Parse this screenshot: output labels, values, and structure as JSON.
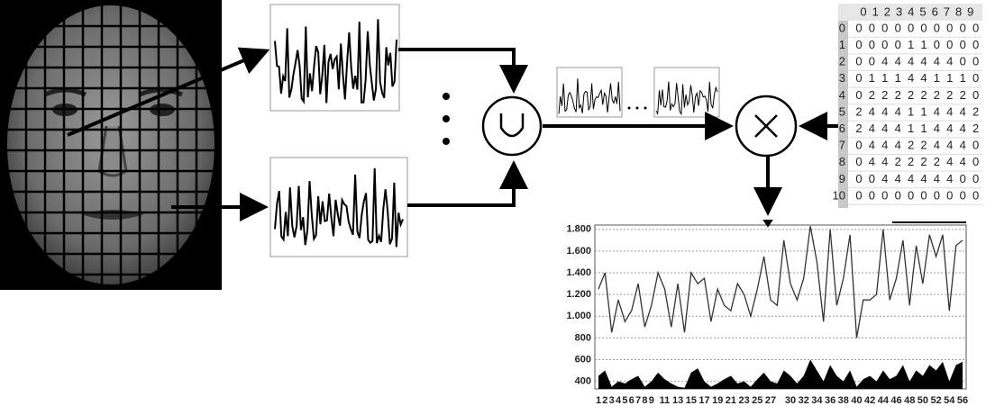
{
  "weight_matrix": {
    "columns": [
      "0",
      "1",
      "2",
      "3",
      "4",
      "5",
      "6",
      "7",
      "8",
      "9"
    ],
    "rows": [
      {
        "label": "0",
        "values": [
          0,
          0,
          0,
          0,
          0,
          0,
          0,
          0,
          0,
          0
        ]
      },
      {
        "label": "1",
        "values": [
          0,
          0,
          0,
          0,
          1,
          1,
          0,
          0,
          0,
          0
        ]
      },
      {
        "label": "2",
        "values": [
          0,
          0,
          4,
          4,
          4,
          4,
          4,
          4,
          0,
          0
        ]
      },
      {
        "label": "3",
        "values": [
          0,
          1,
          1,
          1,
          4,
          4,
          1,
          1,
          1,
          0
        ]
      },
      {
        "label": "4",
        "values": [
          0,
          2,
          2,
          2,
          2,
          2,
          2,
          2,
          2,
          0
        ]
      },
      {
        "label": "5",
        "values": [
          2,
          4,
          4,
          4,
          1,
          1,
          4,
          4,
          4,
          2
        ]
      },
      {
        "label": "6",
        "values": [
          2,
          4,
          4,
          4,
          1,
          1,
          4,
          4,
          4,
          2
        ]
      },
      {
        "label": "7",
        "values": [
          0,
          4,
          4,
          4,
          2,
          2,
          4,
          4,
          4,
          0
        ]
      },
      {
        "label": "8",
        "values": [
          0,
          4,
          4,
          2,
          2,
          2,
          2,
          4,
          4,
          0
        ]
      },
      {
        "label": "9",
        "values": [
          0,
          0,
          4,
          4,
          4,
          4,
          4,
          4,
          0,
          0
        ]
      },
      {
        "label": "10",
        "values": [
          0,
          0,
          0,
          0,
          0,
          0,
          0,
          0,
          0,
          0
        ]
      }
    ]
  },
  "chart_data": {
    "type": "line",
    "categories": [
      "1",
      "2",
      "3",
      "4",
      "5",
      "6",
      "7",
      "8",
      "9",
      null,
      "11",
      null,
      "13",
      null,
      "15",
      null,
      "17",
      null,
      "19",
      null,
      "21",
      null,
      "23",
      null,
      "25",
      null,
      "27",
      null,
      null,
      "30",
      null,
      "32",
      null,
      "34",
      null,
      "36",
      null,
      "38",
      null,
      "40",
      null,
      "42",
      null,
      "44",
      null,
      "46",
      null,
      "48",
      null,
      "50",
      null,
      "52",
      null,
      "54",
      null,
      "56"
    ],
    "series": [
      {
        "color": "#333333",
        "values": [
          1250,
          1400,
          850,
          1150,
          950,
          1050,
          1300,
          900,
          1100,
          1400,
          1250,
          900,
          1300,
          850,
          1400,
          1300,
          1350,
          950,
          1250,
          1100,
          1050,
          1300,
          1200,
          1000,
          1250,
          1550,
          1150,
          1100,
          1700,
          1300,
          1150,
          1350,
          1830,
          1500,
          950,
          1800,
          1100,
          1350,
          1750,
          800,
          1150,
          1150,
          1200,
          1800,
          1150,
          1350,
          1700,
          1100,
          1650,
          1300,
          1750,
          1550,
          1750,
          1050,
          1650,
          1700
        ]
      },
      {
        "color": "#000000",
        "area": true,
        "values": [
          450,
          500,
          350,
          400,
          380,
          420,
          450,
          350,
          400,
          480,
          420,
          380,
          350,
          340,
          480,
          520,
          400,
          350,
          380,
          420,
          450,
          380,
          400,
          350,
          420,
          480,
          400,
          380,
          500,
          450,
          380,
          450,
          600,
          500,
          400,
          550,
          450,
          400,
          500,
          350,
          420,
          450,
          400,
          500,
          420,
          450,
          550,
          400,
          500,
          450,
          550,
          500,
          580,
          400,
          550,
          580
        ]
      }
    ],
    "ylim": [
      330,
      1840
    ],
    "yticks": [
      {
        "value": 1800,
        "label": "1.800"
      },
      {
        "value": 1600,
        "label": "1.600"
      },
      {
        "value": 1400,
        "label": "1.400"
      },
      {
        "value": 1200,
        "label": "1.200"
      },
      {
        "value": 1000,
        "label": "1.000"
      },
      800,
      600,
      400
    ],
    "grid": true
  }
}
